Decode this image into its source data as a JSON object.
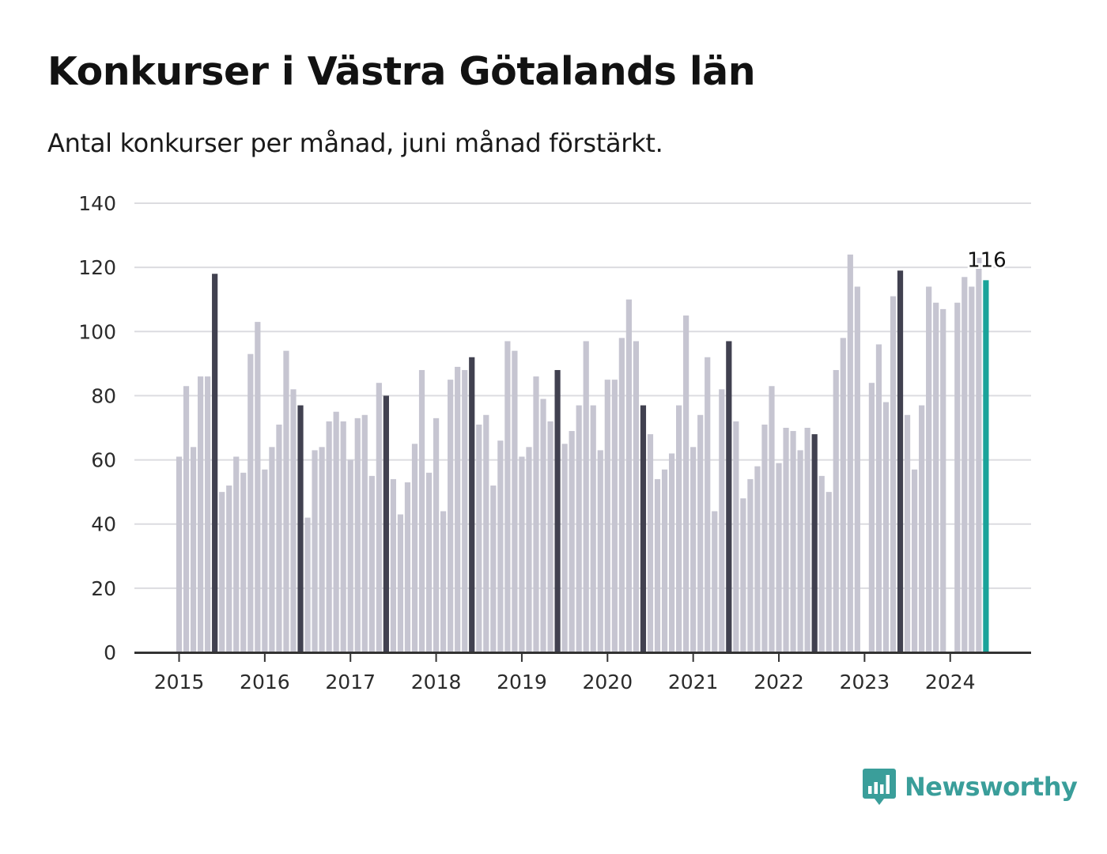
{
  "header": {
    "title": "Konkurser i Västra Götalands län",
    "subtitle": "Antal konkurser per månad, juni månad förstärkt."
  },
  "brand": {
    "name": "Newsworthy",
    "icon": "newsworthy-logo-icon",
    "color": "#3a9e9a"
  },
  "colors": {
    "regular": "#c6c5d1",
    "june": "#414150",
    "latest": "#1aa39a",
    "grid": "#dcdce0",
    "axis": "#333333"
  },
  "chart_data": {
    "type": "bar",
    "title": "Konkurser i Västra Götalands län",
    "subtitle": "Antal konkurser per månad, juni månad förstärkt.",
    "xlabel": "",
    "ylabel": "",
    "ylim": [
      0,
      140
    ],
    "yticks": [
      0,
      20,
      40,
      60,
      80,
      100,
      120,
      140
    ],
    "xticks": [
      "2015",
      "2016",
      "2017",
      "2018",
      "2019",
      "2020",
      "2021",
      "2022",
      "2023",
      "2024"
    ],
    "start": "2015-01",
    "grid": true,
    "highlight_month": "juni",
    "values": [
      61,
      83,
      64,
      86,
      86,
      118,
      50,
      52,
      61,
      56,
      93,
      103,
      57,
      64,
      71,
      94,
      82,
      77,
      42,
      63,
      64,
      72,
      75,
      72,
      60,
      73,
      74,
      55,
      84,
      80,
      54,
      43,
      53,
      65,
      88,
      56,
      73,
      44,
      85,
      89,
      88,
      92,
      71,
      74,
      52,
      66,
      97,
      94,
      61,
      64,
      86,
      79,
      72,
      88,
      65,
      69,
      77,
      97,
      77,
      63,
      85,
      85,
      98,
      110,
      97,
      77,
      68,
      54,
      57,
      62,
      77,
      105,
      64,
      74,
      92,
      44,
      82,
      97,
      72,
      48,
      54,
      58,
      71,
      83,
      59,
      70,
      69,
      63,
      70,
      68,
      55,
      50,
      88,
      98,
      124,
      114,
      null,
      84,
      96,
      78,
      111,
      119,
      74,
      57,
      77,
      114,
      109,
      107,
      null,
      109,
      117,
      114,
      123,
      116
    ],
    "annotation": {
      "text": "116",
      "index": 113
    }
  }
}
